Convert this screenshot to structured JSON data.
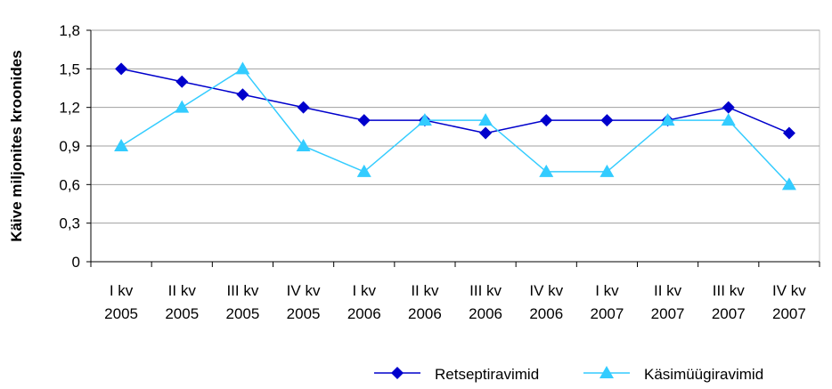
{
  "chart_data": {
    "type": "line",
    "y_label": "Käive miljonites kroonides",
    "categories": [
      "I kv\n2005",
      "II kv\n2005",
      "III kv\n2005",
      "IV kv\n2005",
      "I kv\n2006",
      "II kv\n2006",
      "III kv\n2006",
      "IV kv\n2006",
      "I kv\n2007",
      "II kv\n2007",
      "III kv\n2007",
      "IV kv\n2007"
    ],
    "series": [
      {
        "name": "Retseptiravimid",
        "color": "#0000cc",
        "marker": "diamond",
        "values": [
          1.5,
          1.4,
          1.3,
          1.2,
          1.1,
          1.1,
          1.0,
          1.1,
          1.1,
          1.1,
          1.2,
          1.0
        ]
      },
      {
        "name": "Käsimüügiravimid",
        "color": "#33ccff",
        "marker": "triangle",
        "values": [
          0.9,
          1.2,
          1.5,
          0.9,
          0.7,
          1.1,
          1.1,
          0.7,
          0.7,
          1.1,
          1.1,
          0.6
        ]
      }
    ],
    "ylim": [
      0,
      1.8
    ],
    "yticks": [
      0,
      {
        "value": 0.3,
        "label": "0,3"
      },
      {
        "value": 0.6,
        "label": "0,6"
      },
      {
        "value": 0.9,
        "label": "0,9"
      },
      {
        "value": 1.2,
        "label": "1,2"
      },
      {
        "value": 1.5,
        "label": "1,5"
      },
      {
        "value": 1.8,
        "label": "1,8"
      }
    ],
    "grid": true
  }
}
